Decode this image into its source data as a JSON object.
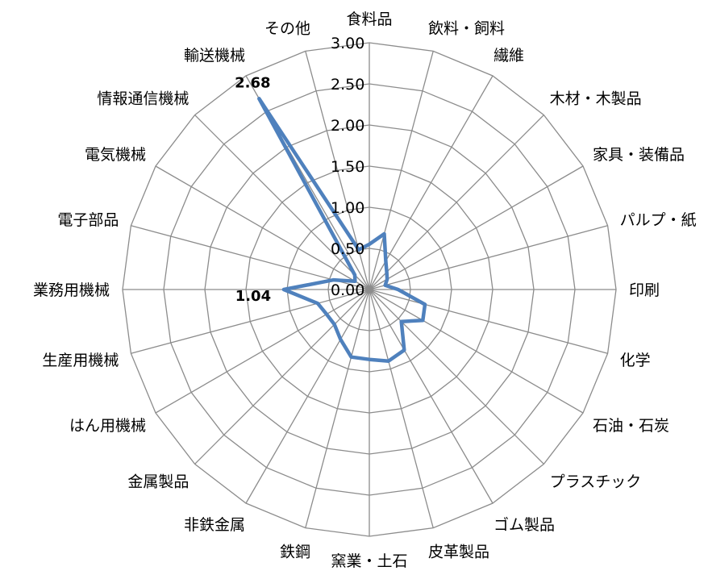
{
  "chart_data": {
    "type": "radar",
    "title": "",
    "categories": [
      "食料品",
      "飲料・飼料",
      "繊維",
      "木材・木製品",
      "家具・装備品",
      "パルプ・紙",
      "印刷",
      "化学",
      "石油・石炭",
      "プラスチック",
      "ゴム製品",
      "皮革製品",
      "窯業・土石",
      "鉄鋼",
      "非鉄金属",
      "金属製品",
      "はん用機械",
      "生産用機械",
      "業務用機械",
      "電子部品",
      "電気機械",
      "情報通信機械",
      "輸送機械",
      "その他"
    ],
    "series": [
      {
        "values": [
          0.55,
          0.7,
          0.4,
          0.3,
          0.25,
          0.2,
          0.35,
          0.7,
          0.75,
          0.55,
          0.85,
          0.9,
          0.85,
          0.85,
          0.7,
          0.6,
          0.6,
          0.65,
          1.04,
          0.45,
          0.2,
          0.25,
          2.68,
          0.5
        ],
        "color": "#4f81bd"
      }
    ],
    "r_ticks": [
      "0.00",
      "0.50",
      "1.00",
      "1.50",
      "2.00",
      "2.50",
      "3.00"
    ],
    "rlim": [
      0,
      3
    ],
    "grid": true,
    "legend": "none",
    "data_labels": [
      {
        "category": "輸送機械",
        "text": "2.68"
      },
      {
        "category": "業務用機械",
        "text": "1.04"
      }
    ]
  }
}
